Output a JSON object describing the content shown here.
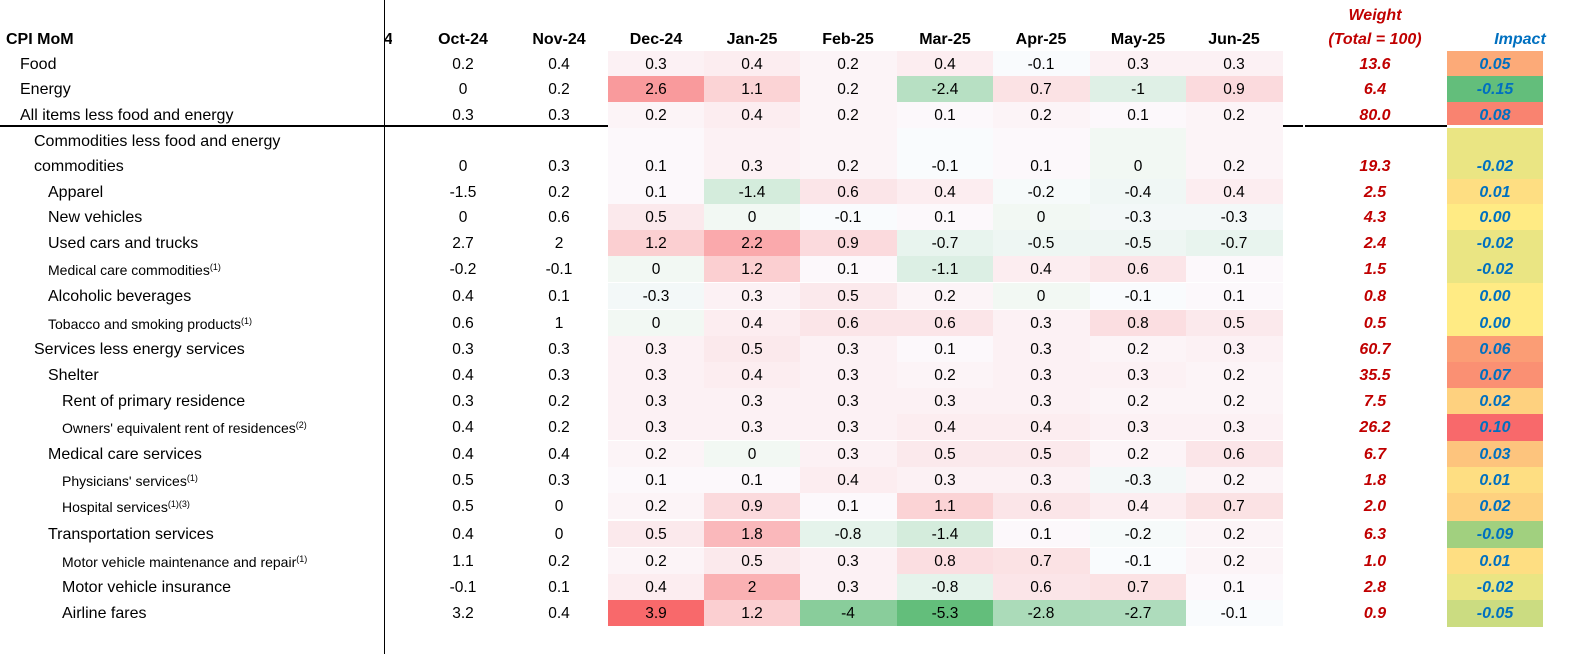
{
  "header": {
    "title": "CPI MoM",
    "clipped_col": "4",
    "months": [
      "Oct-24",
      "Nov-24",
      "Dec-24",
      "Jan-25",
      "Feb-25",
      "Mar-25",
      "Apr-25",
      "May-25",
      "Jun-25"
    ],
    "weight_line1": "Weight",
    "weight_line2": "(Total = 100)",
    "impact": "Impact"
  },
  "colors": {
    "weight_text": "#C00000",
    "impact_text": "#0070C0",
    "heat_positive": "#F8696B",
    "heat_negative": "#63BE7B",
    "impact_high": "#F8696B",
    "impact_mid": "#FFEB84",
    "impact_low": "#63BE7B"
  },
  "rows": [
    {
      "label": "Food",
      "indent": 1,
      "values": [
        "0.2",
        "0.4",
        "0.3",
        "0.4",
        "0.2",
        "0.4",
        "-0.1",
        "0.3",
        "0.3"
      ],
      "weight": "13.6",
      "impact": "0.05"
    },
    {
      "label": "Energy",
      "indent": 1,
      "values": [
        "0",
        "0.2",
        "2.6",
        "1.1",
        "0.2",
        "-2.4",
        "0.7",
        "-1",
        "0.9"
      ],
      "weight": "6.4",
      "impact": "-0.15"
    },
    {
      "label": "All items less food and energy",
      "indent": 1,
      "values": [
        "0.3",
        "0.3",
        "0.2",
        "0.4",
        "0.2",
        "0.1",
        "0.2",
        "0.1",
        "0.2"
      ],
      "weight": "80.0",
      "impact": "0.08"
    },
    {
      "label": "Commodities less food and energy",
      "label2": "commodities",
      "indent": 2,
      "values": [
        "0",
        "0.3",
        "0.1",
        "0.3",
        "0.2",
        "-0.1",
        "0.1",
        "0",
        "0.2"
      ],
      "weight": "19.3",
      "impact": "-0.02"
    },
    {
      "label": "Apparel",
      "indent": 3,
      "values": [
        "-1.5",
        "0.2",
        "0.1",
        "-1.4",
        "0.6",
        "0.4",
        "-0.2",
        "-0.4",
        "0.4"
      ],
      "weight": "2.5",
      "impact": "0.01"
    },
    {
      "label": "New vehicles",
      "indent": 3,
      "values": [
        "0",
        "0.6",
        "0.5",
        "0",
        "-0.1",
        "0.1",
        "0",
        "-0.3",
        "-0.3"
      ],
      "weight": "4.3",
      "impact": "0.00"
    },
    {
      "label": "Used cars and trucks",
      "indent": 3,
      "values": [
        "2.7",
        "2",
        "1.2",
        "2.2",
        "0.9",
        "-0.7",
        "-0.5",
        "-0.5",
        "-0.7"
      ],
      "weight": "2.4",
      "impact": "-0.02"
    },
    {
      "label": "Medical care commodities",
      "sup": "(1)",
      "small": true,
      "indent": 3,
      "values": [
        "-0.2",
        "-0.1",
        "0",
        "1.2",
        "0.1",
        "-1.1",
        "0.4",
        "0.6",
        "0.1"
      ],
      "weight": "1.5",
      "impact": "-0.02"
    },
    {
      "label": "Alcoholic beverages",
      "indent": 3,
      "values": [
        "0.4",
        "0.1",
        "-0.3",
        "0.3",
        "0.5",
        "0.2",
        "0",
        "-0.1",
        "0.1"
      ],
      "weight": "0.8",
      "impact": "0.00"
    },
    {
      "label": "Tobacco and smoking products",
      "sup": "(1)",
      "small": true,
      "indent": 3,
      "values": [
        "0.6",
        "1",
        "0",
        "0.4",
        "0.6",
        "0.6",
        "0.3",
        "0.8",
        "0.5"
      ],
      "weight": "0.5",
      "impact": "0.00"
    },
    {
      "label": "Services less energy services",
      "indent": 2,
      "values": [
        "0.3",
        "0.3",
        "0.3",
        "0.5",
        "0.3",
        "0.1",
        "0.3",
        "0.2",
        "0.3"
      ],
      "weight": "60.7",
      "impact": "0.06"
    },
    {
      "label": "Shelter",
      "indent": 3,
      "values": [
        "0.4",
        "0.3",
        "0.3",
        "0.4",
        "0.3",
        "0.2",
        "0.3",
        "0.3",
        "0.2"
      ],
      "weight": "35.5",
      "impact": "0.07"
    },
    {
      "label": "Rent of primary residence",
      "indent": 4,
      "values": [
        "0.3",
        "0.2",
        "0.3",
        "0.3",
        "0.3",
        "0.3",
        "0.3",
        "0.2",
        "0.2"
      ],
      "weight": "7.5",
      "impact": "0.02"
    },
    {
      "label": "Owners' equivalent rent of residences",
      "sup": "(2)",
      "small": true,
      "indent": 4,
      "values": [
        "0.4",
        "0.2",
        "0.3",
        "0.3",
        "0.3",
        "0.4",
        "0.4",
        "0.3",
        "0.3"
      ],
      "weight": "26.2",
      "impact": "0.10"
    },
    {
      "label": "Medical care services",
      "indent": 3,
      "values": [
        "0.4",
        "0.4",
        "0.2",
        "0",
        "0.3",
        "0.5",
        "0.5",
        "0.2",
        "0.6"
      ],
      "weight": "6.7",
      "impact": "0.03"
    },
    {
      "label": "Physicians' services",
      "sup": "(1)",
      "small": true,
      "indent": 4,
      "values": [
        "0.5",
        "0.3",
        "0.1",
        "0.1",
        "0.4",
        "0.3",
        "0.3",
        "-0.3",
        "0.2"
      ],
      "weight": "1.8",
      "impact": "0.01"
    },
    {
      "label": "Hospital services",
      "sup": "(1)(3)",
      "small": true,
      "indent": 4,
      "values": [
        "0.5",
        "0",
        "0.2",
        "0.9",
        "0.1",
        "1.1",
        "0.6",
        "0.4",
        "0.7"
      ],
      "weight": "2.0",
      "impact": "0.02"
    },
    {
      "label": "Transportation services",
      "indent": 3,
      "values": [
        "0.4",
        "0",
        "0.5",
        "1.8",
        "-0.8",
        "-1.4",
        "0.1",
        "-0.2",
        "0.2"
      ],
      "weight": "6.3",
      "impact": "-0.09"
    },
    {
      "label": "Motor vehicle maintenance and repair",
      "sup": "(1)",
      "small": true,
      "indent": 4,
      "values": [
        "1.1",
        "0.2",
        "0.2",
        "0.5",
        "0.3",
        "0.8",
        "0.7",
        "-0.1",
        "0.2"
      ],
      "weight": "1.0",
      "impact": "0.01"
    },
    {
      "label": "Motor vehicle insurance",
      "indent": 4,
      "values": [
        "-0.1",
        "0.1",
        "0.4",
        "2",
        "0.3",
        "-0.8",
        "0.6",
        "0.7",
        "0.1"
      ],
      "weight": "2.8",
      "impact": "-0.02"
    },
    {
      "label": "Airline fares",
      "indent": 4,
      "values": [
        "3.2",
        "0.4",
        "3.9",
        "1.2",
        "-4",
        "-5.3",
        "-2.8",
        "-2.7",
        "-0.1"
      ],
      "weight": "0.9",
      "impact": "-0.05"
    }
  ]
}
